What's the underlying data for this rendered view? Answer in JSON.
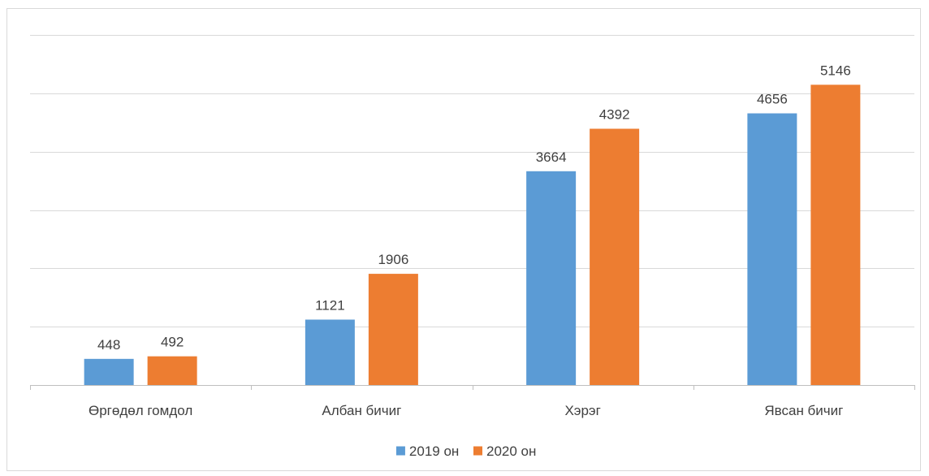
{
  "chart_data": {
    "type": "bar",
    "categories": [
      "Өргөдөл гомдол",
      "Албан бичиг",
      "Хэрэг",
      "Явсан бичиг"
    ],
    "series": [
      {
        "name": "2019 он",
        "color": "#5b9bd5",
        "values": [
          448,
          1121,
          3664,
          4656
        ]
      },
      {
        "name": "2020 он",
        "color": "#ed7d31",
        "values": [
          492,
          1906,
          4392,
          5146
        ]
      }
    ],
    "ylim": [
      0,
      6000
    ],
    "y_gridline_step": 1000,
    "grid": true,
    "y_tick_labels_shown": false,
    "data_labels": true,
    "legend_position": "bottom",
    "title": "",
    "xlabel": "",
    "ylabel": ""
  }
}
